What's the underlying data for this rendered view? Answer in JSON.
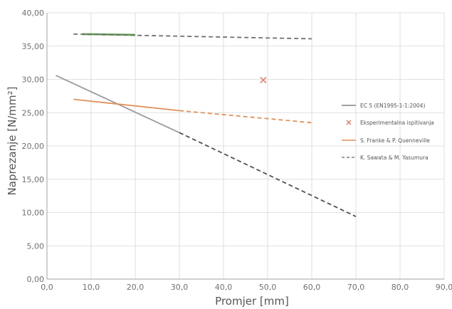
{
  "chart_data": {
    "type": "line",
    "title": "",
    "xlabel": "Promjer [mm]",
    "ylabel": "Naprezanje [N/mm²]",
    "xlim": [
      0,
      90
    ],
    "ylim": [
      0,
      40
    ],
    "xticks": [
      0,
      10,
      20,
      30,
      40,
      50,
      60,
      70,
      80,
      90
    ],
    "yticks": [
      0,
      5,
      10,
      15,
      20,
      25,
      30,
      35,
      40
    ],
    "xtick_labels": [
      "0,0",
      "10,0",
      "20,0",
      "30,0",
      "40,0",
      "50,0",
      "60,0",
      "70,0",
      "80,0",
      "90,0"
    ],
    "ytick_labels": [
      "0,00",
      "5,00",
      "10,00",
      "15,00",
      "20,00",
      "25,00",
      "30,00",
      "35,00",
      "40,00"
    ],
    "grid": true,
    "legend_position": "right",
    "legend": [
      {
        "label": "EC 5 (EN1995-1-1:2004)",
        "color": "#808080",
        "style": "solid"
      },
      {
        "label": "Eksperimentalna ispitivanja",
        "color": "#d9826a",
        "style": "cross"
      },
      {
        "label": "S. Franke & P. Quenneville",
        "color": "#e0915a",
        "style": "solid"
      },
      {
        "label": "K. Sawata & M. Yasumura",
        "color": "#808080",
        "style": "dashed"
      }
    ],
    "series": [
      {
        "style": "solid",
        "color": "#9a9aa0",
        "x": [
          2,
          30
        ],
        "y": [
          30.6,
          22.0
        ]
      },
      {
        "style": "dashed",
        "color": "#505050",
        "x": [
          30,
          70
        ],
        "y": [
          22.0,
          9.4
        ]
      },
      {
        "style": "solid",
        "color": "#e0915a",
        "x": [
          6,
          30
        ],
        "y": [
          27.0,
          25.3
        ]
      },
      {
        "style": "dashed",
        "color": "#e0915a",
        "x": [
          30,
          60
        ],
        "y": [
          25.3,
          23.5
        ]
      },
      {
        "style": "solid",
        "color": "#5a9e4a",
        "x": [
          8,
          20
        ],
        "y": [
          36.8,
          36.7
        ]
      },
      {
        "style": "dashed",
        "color": "#707070",
        "x": [
          6,
          60
        ],
        "y": [
          36.8,
          36.1
        ]
      },
      {
        "style": "marker",
        "color": "#d9826a",
        "x": [
          49
        ],
        "y": [
          29.9
        ]
      }
    ]
  }
}
